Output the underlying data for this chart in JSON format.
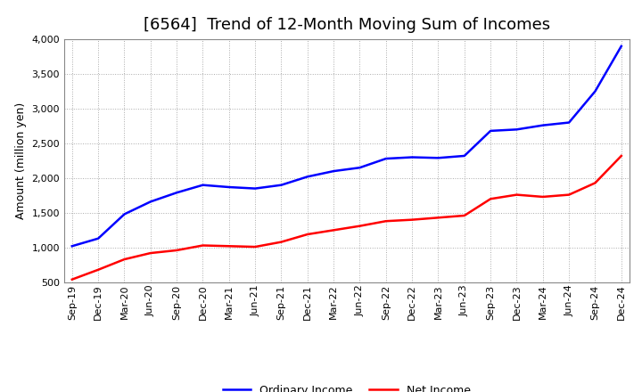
{
  "title": "[6564]  Trend of 12-Month Moving Sum of Incomes",
  "ylabel": "Amount (million yen)",
  "ylim": [
    500,
    4000
  ],
  "yticks": [
    500,
    1000,
    1500,
    2000,
    2500,
    3000,
    3500,
    4000
  ],
  "background_color": "#ffffff",
  "plot_bg_color": "#ffffff",
  "grid_color": "#aaaaaa",
  "x_labels": [
    "Sep-19",
    "Dec-19",
    "Mar-20",
    "Jun-20",
    "Sep-20",
    "Dec-20",
    "Mar-21",
    "Jun-21",
    "Sep-21",
    "Dec-21",
    "Mar-22",
    "Jun-22",
    "Sep-22",
    "Dec-22",
    "Mar-23",
    "Jun-23",
    "Sep-23",
    "Dec-23",
    "Mar-24",
    "Jun-24",
    "Sep-24",
    "Dec-24"
  ],
  "ordinary_income": [
    1020,
    1130,
    1480,
    1660,
    1790,
    1900,
    1870,
    1850,
    1900,
    2020,
    2100,
    2150,
    2280,
    2300,
    2290,
    2320,
    2680,
    2700,
    2760,
    2800,
    3250,
    3900
  ],
  "net_income": [
    540,
    680,
    830,
    920,
    960,
    1030,
    1020,
    1010,
    1080,
    1190,
    1250,
    1310,
    1380,
    1400,
    1430,
    1460,
    1700,
    1760,
    1730,
    1760,
    1930,
    2320
  ],
  "ordinary_color": "#0000ff",
  "net_color": "#ff0000",
  "line_width": 1.8,
  "title_fontsize": 13,
  "axis_fontsize": 9,
  "tick_fontsize": 8,
  "legend_fontsize": 9
}
